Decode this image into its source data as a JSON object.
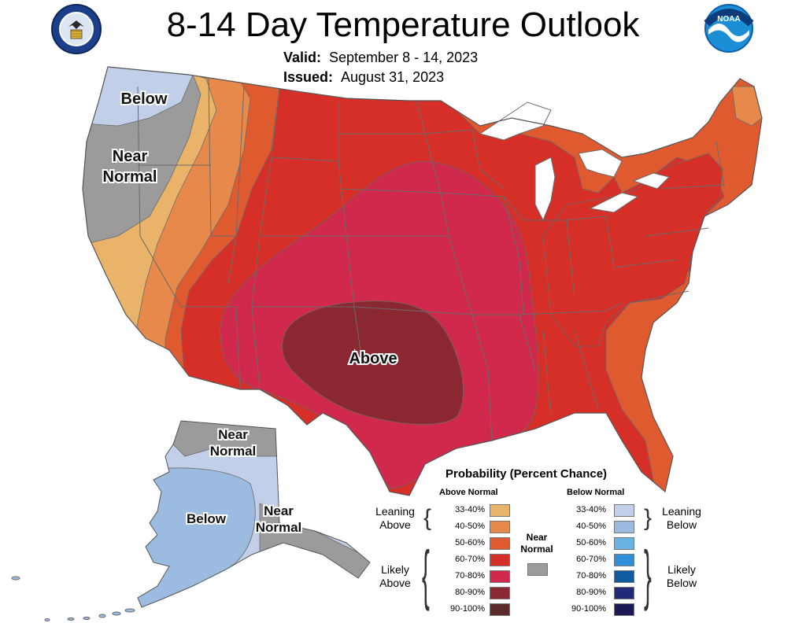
{
  "header": {
    "title": "8-14 Day Temperature Outlook",
    "valid_label": "Valid:",
    "valid_value": "September 8 - 14, 2023",
    "issued_label": "Issued:",
    "issued_value": "August 31, 2023"
  },
  "map": {
    "region_labels": {
      "below_west": "Below",
      "near_normal_west_1": "Near",
      "near_normal_west_2": "Normal",
      "above_center": "Above",
      "ak_near_normal_north_1": "Near",
      "ak_near_normal_north_2": "Normal",
      "ak_below": "Below",
      "ak_near_normal_south_1": "Near",
      "ak_near_normal_south_2": "Normal"
    },
    "colors": {
      "land": "#d62f28",
      "above_33_40": "#e9b46a",
      "above_40_50": "#e6894a",
      "above_50_60": "#e05a2f",
      "above_60_70": "#d62f28",
      "above_70_80": "#d0294c",
      "above_80_90": "#8a2730",
      "near_normal": "#9b9b9b",
      "below_33_40": "#c2cfe8",
      "below_40_50": "#9bbbe0",
      "water": "#ffffff",
      "borders": "#6a6a6a"
    }
  },
  "legend": {
    "title": "Probability (Percent Chance)",
    "above_header": "Above Normal",
    "below_header": "Below Normal",
    "near_normal_1": "Near",
    "near_normal_2": "Normal",
    "near_normal_color": "#9b9b9b",
    "leaning_above_1": "Leaning",
    "leaning_above_2": "Above",
    "likely_above_1": "Likely",
    "likely_above_2": "Above",
    "leaning_below_1": "Leaning",
    "leaning_below_2": "Below",
    "likely_below_1": "Likely",
    "likely_below_2": "Below",
    "above_bins": [
      {
        "label": "33-40%",
        "color": "#e9b46a"
      },
      {
        "label": "40-50%",
        "color": "#e6894a"
      },
      {
        "label": "50-60%",
        "color": "#e05a2f"
      },
      {
        "label": "60-70%",
        "color": "#d62f28"
      },
      {
        "label": "70-80%",
        "color": "#d0294c"
      },
      {
        "label": "80-90%",
        "color": "#8a2730"
      },
      {
        "label": "90-100%",
        "color": "#5c2a2a"
      }
    ],
    "below_bins": [
      {
        "label": "33-40%",
        "color": "#c2cfe8"
      },
      {
        "label": "40-50%",
        "color": "#9bbbe0"
      },
      {
        "label": "50-60%",
        "color": "#6ab2e0"
      },
      {
        "label": "60-70%",
        "color": "#2f8fd8"
      },
      {
        "label": "70-80%",
        "color": "#0f5aa0"
      },
      {
        "label": "80-90%",
        "color": "#202a78"
      },
      {
        "label": "90-100%",
        "color": "#1c1a56"
      }
    ]
  },
  "logos": {
    "left": "commerce-seal",
    "right": "noaa-logo",
    "right_text": "NOAA"
  }
}
